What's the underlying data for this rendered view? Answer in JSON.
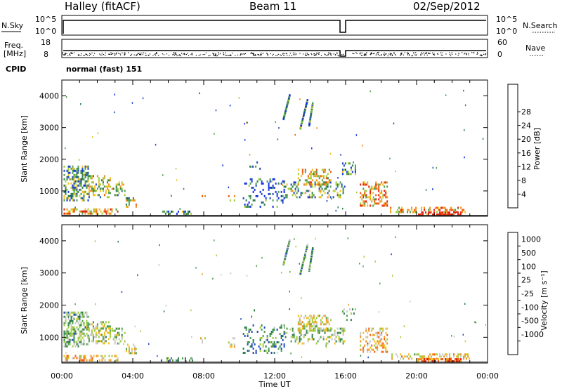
{
  "header": {
    "station": "Halley (fitACF)",
    "beam": "Beam 11",
    "date": "02/Sep/2012"
  },
  "strips": {
    "nsky_label": "N.Sky",
    "nsky_ticks": [
      "10^5",
      "10^0"
    ],
    "nsearch_label": "N.Search",
    "nsearch_ticks": [
      "10^5",
      "10^0"
    ],
    "freq_label": "Freq.",
    "freq_unit": "[MHz]",
    "freq_ticks": [
      "18",
      "8"
    ],
    "nave_label": "Nave",
    "nave_ticks": [
      "60",
      "0"
    ],
    "cpid_label": "CPID",
    "cpid_value": "normal (fast) 151"
  },
  "colors": {
    "power_scale": [
      "#1030e0",
      "#2048c0",
      "#2f7f4a",
      "#4f9f4f",
      "#9fcc3a",
      "#f0c020",
      "#f09020",
      "#f05a10",
      "#e02010"
    ],
    "velocity_scale": [
      "#e02010",
      "#f05a10",
      "#f09020",
      "#f0c020",
      "#c8c8c8",
      "#9fcc3a",
      "#4f9f4f",
      "#2f7f4a",
      "#2048c0"
    ]
  },
  "chart_data": [
    {
      "type": "heatmap",
      "parameter": "power",
      "ylabel": "Slant Range [km]",
      "yticks": [
        "1000",
        "2000",
        "3000",
        "4000"
      ],
      "ylim": [
        200,
        4500
      ],
      "xlim": [
        0,
        24
      ],
      "colorbar_label": "Power [dB]",
      "colorbar_ticks": [
        "4",
        "8",
        "12",
        "16",
        "20",
        "24",
        "28"
      ]
    },
    {
      "type": "heatmap",
      "parameter": "velocity",
      "ylabel": "Slant Range [km]",
      "yticks": [
        "1000",
        "2000",
        "3000",
        "4000"
      ],
      "ylim": [
        200,
        4500
      ],
      "xlim": [
        0,
        24
      ],
      "xlabel": "Time UT",
      "xticks": [
        "00:00",
        "04:00",
        "08:00",
        "12:00",
        "16:00",
        "20:00",
        "00:00"
      ],
      "colorbar_label": "Velocity [m s⁻¹]",
      "colorbar_ticks": [
        "1000",
        "500",
        "100",
        "25",
        "-25",
        "-100",
        "-500",
        "-1000"
      ]
    }
  ]
}
